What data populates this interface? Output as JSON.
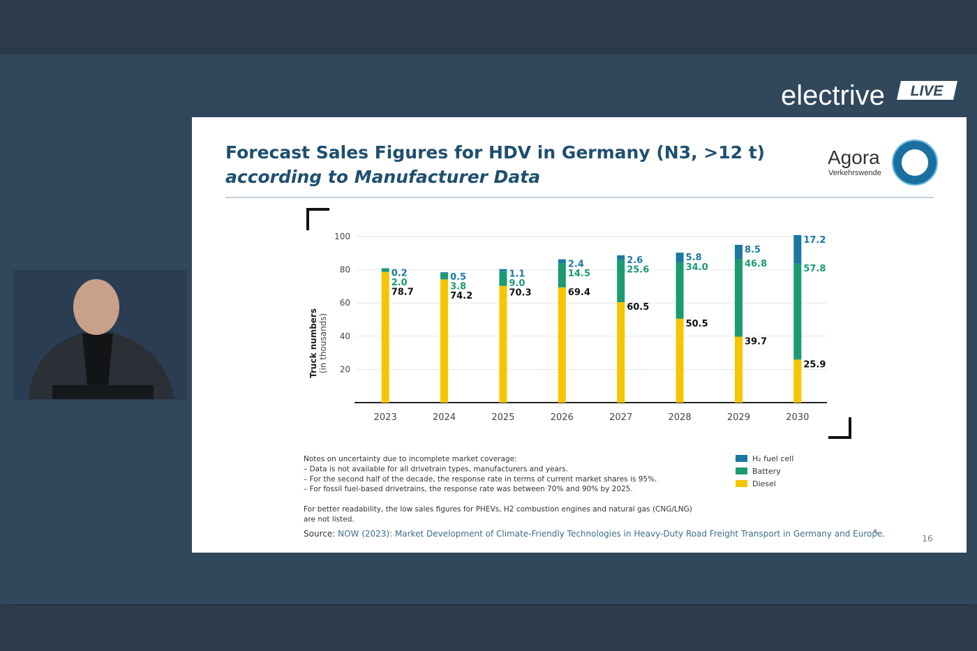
{
  "header": {
    "brand": "electrive",
    "badge": "LIVE"
  },
  "slide": {
    "title": "Forecast Sales Figures for HDV in Germany (N3, >12 t)",
    "subtitle": "according to Manufacturer Data",
    "logo": {
      "name": "Agora",
      "tagline": "Verkehrswende"
    },
    "notes": [
      "Notes on uncertainty due to incomplete market coverage:",
      "– Data is not available for all drivetrain types, manufacturers and years.",
      "– For the second half of the decade, the response rate in terms of current market shares is 95%.",
      "– For fossil fuel-based drivetrains, the response rate was between 70% and 90% by 2025."
    ],
    "readability_note": [
      "For better readability, the low sales figures for PHEVs, H2 combustion engines and natural gas (CNG/LNG)",
      "are not listed."
    ],
    "source_label": "Source:",
    "source": "NOW (2023): Market Development of Climate-Friendly Technologies in Heavy-Duty Road Freight Transport in Germany and Europe.",
    "page_number": 16
  },
  "chart_data": {
    "type": "stacked-bar",
    "y_label": "Truck numbers",
    "y_label_sub": "(in thousands)",
    "categories": [
      "2023",
      "2024",
      "2025",
      "2026",
      "2027",
      "2028",
      "2029",
      "2030"
    ],
    "series": [
      {
        "name": "Diesel",
        "color": "#f6c500",
        "label_color": "#111111",
        "values": [
          78.7,
          74.2,
          70.3,
          69.4,
          60.5,
          50.5,
          39.7,
          25.9
        ],
        "value_labels": [
          "78.7",
          "74.2",
          "70.3",
          "69.4",
          "60.5",
          "50.5",
          "39.7",
          "25.9"
        ]
      },
      {
        "name": "Battery",
        "color": "#1c9a72",
        "label_color": "#1c9a72",
        "values": [
          2.0,
          3.8,
          9.0,
          14.5,
          25.6,
          34.0,
          46.8,
          57.8
        ],
        "value_labels": [
          "2.0",
          "3.8",
          "9.0",
          "14.5",
          "25.6",
          "34.0",
          "46.8",
          "57.8"
        ]
      },
      {
        "name": "H₂ fuel cell",
        "color": "#1a78a3",
        "label_color": "#1a78a3",
        "values": [
          0.2,
          0.5,
          1.1,
          2.4,
          2.6,
          5.8,
          8.5,
          17.2
        ],
        "value_labels": [
          "0.2",
          "0.5",
          "1.1",
          "2.4",
          "2.6",
          "5.8",
          "8.5",
          "17.2"
        ]
      }
    ],
    "ylim": [
      0,
      100
    ],
    "yticks": [
      20,
      40,
      60,
      80,
      100
    ],
    "grid": true,
    "legend": "lower right"
  }
}
